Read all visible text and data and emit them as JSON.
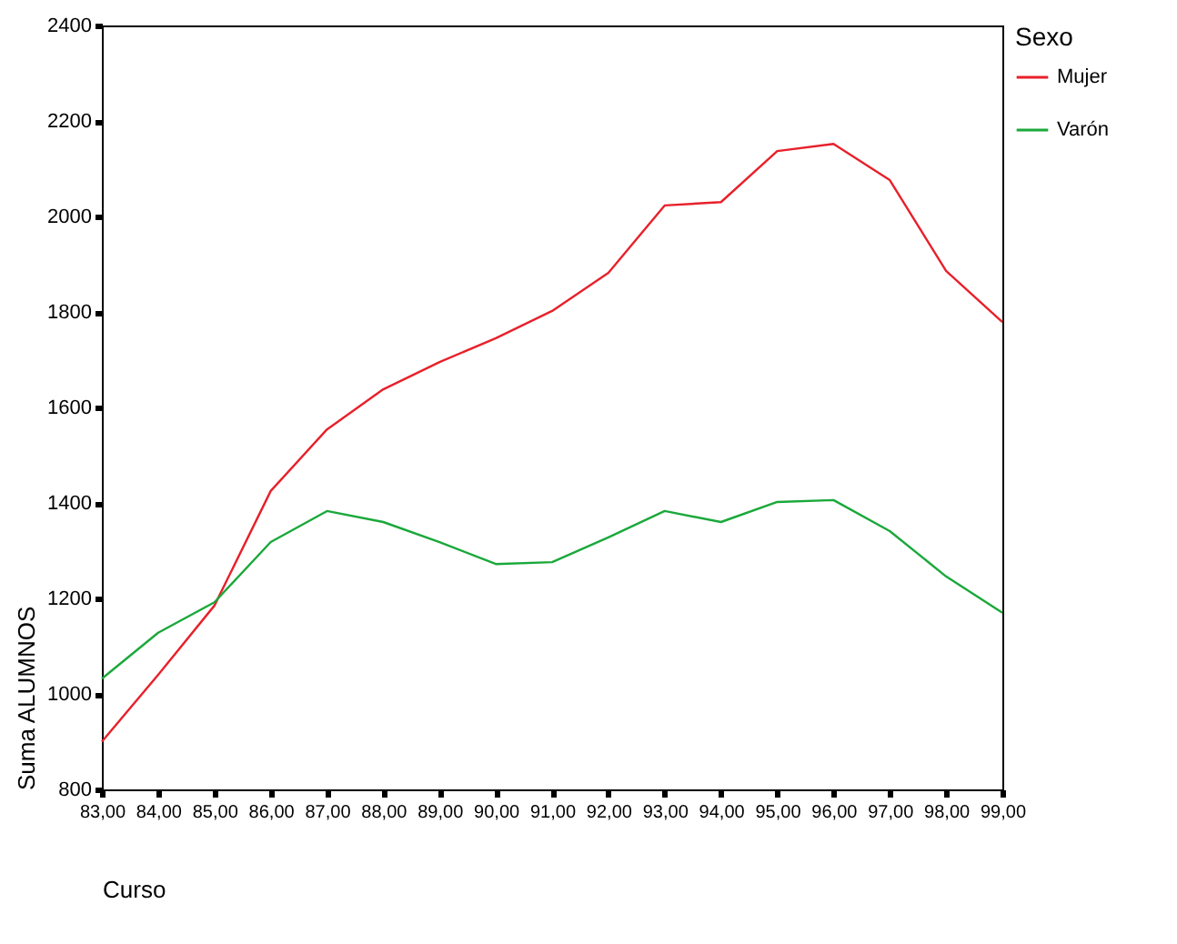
{
  "chart_data": {
    "type": "line",
    "xlabel": "Curso",
    "ylabel": "Suma ALUMNOS",
    "legend_title": "Sexo",
    "legend": "right",
    "grid": false,
    "x": [
      83,
      84,
      85,
      86,
      87,
      88,
      89,
      90,
      91,
      92,
      93,
      94,
      95,
      96,
      97,
      98,
      99
    ],
    "xlim": [
      83,
      99
    ],
    "xticks": [
      {
        "value": 83,
        "label": "83,00"
      },
      {
        "value": 84,
        "label": "84,00"
      },
      {
        "value": 85,
        "label": "85,00"
      },
      {
        "value": 86,
        "label": "86,00"
      },
      {
        "value": 87,
        "label": "87,00"
      },
      {
        "value": 88,
        "label": "88,00"
      },
      {
        "value": 89,
        "label": "89,00"
      },
      {
        "value": 90,
        "label": "90,00"
      },
      {
        "value": 91,
        "label": "91,00"
      },
      {
        "value": 92,
        "label": "92,00"
      },
      {
        "value": 93,
        "label": "93,00"
      },
      {
        "value": 94,
        "label": "94,00"
      },
      {
        "value": 95,
        "label": "95,00"
      },
      {
        "value": 96,
        "label": "96,00"
      },
      {
        "value": 97,
        "label": "97,00"
      },
      {
        "value": 98,
        "label": "98,00"
      },
      {
        "value": 99,
        "label": "99,00"
      }
    ],
    "ylim": [
      800,
      2400
    ],
    "yticks": [
      800,
      1000,
      1200,
      1400,
      1600,
      1800,
      2000,
      2200,
      2400
    ],
    "series": [
      {
        "name": "Mujer",
        "color": "#e8202a",
        "values": [
          900,
          1040,
          1185,
          1425,
          1554,
          1638,
          1695,
          1745,
          1802,
          1882,
          2023,
          2030,
          2137,
          2152,
          2076,
          1886,
          1779
        ]
      },
      {
        "name": "Varón",
        "color": "#1aa83a",
        "values": [
          1032,
          1128,
          1192,
          1318,
          1383,
          1360,
          1318,
          1272,
          1276,
          1328,
          1383,
          1360,
          1402,
          1406,
          1341,
          1246,
          1170
        ]
      }
    ]
  }
}
